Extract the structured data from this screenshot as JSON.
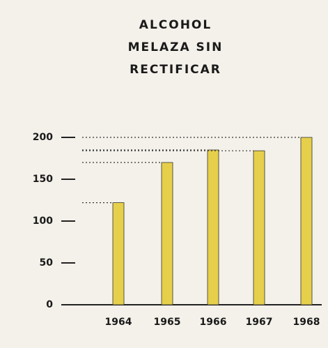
{
  "chart_data": {
    "type": "bar",
    "title": [
      "ALCOHOL",
      "MELAZA SIN",
      "RECTIFICAR"
    ],
    "categories": [
      "1964",
      "1965",
      "1966",
      "1967",
      "1968"
    ],
    "values": [
      122,
      170,
      185,
      184,
      200
    ],
    "color": "#e6cf4a",
    "ylim": [
      0,
      200
    ],
    "yticks": [
      0,
      50,
      100,
      150,
      200
    ],
    "grid": false
  }
}
